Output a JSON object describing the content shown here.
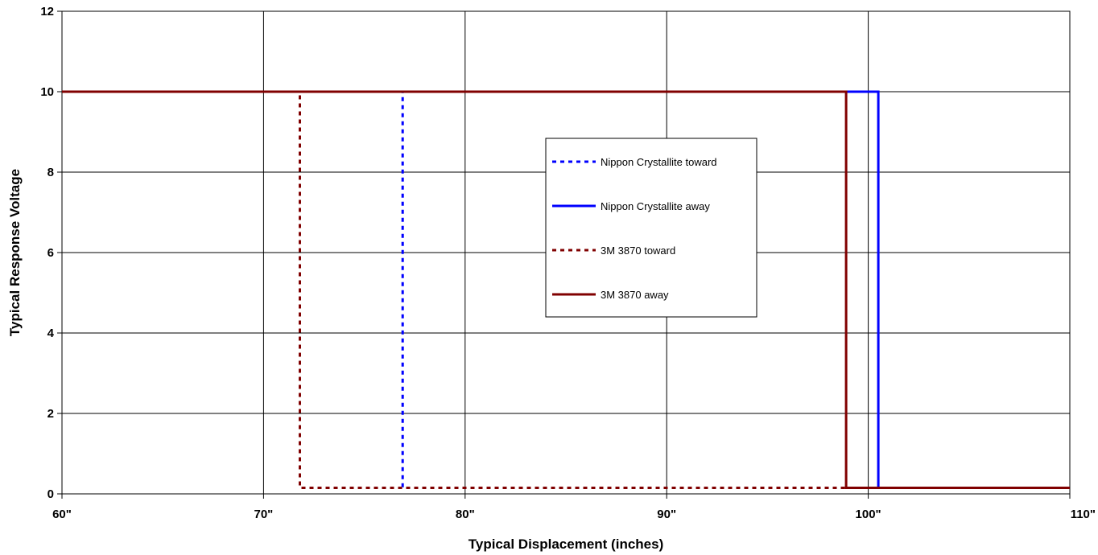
{
  "chart_data": {
    "type": "line",
    "title": "",
    "xlabel": "Typical Displacement (inches)",
    "ylabel": "Typical Response Voltage",
    "xlim": [
      60,
      110
    ],
    "ylim": [
      0,
      12
    ],
    "x_ticks": [
      60,
      70,
      80,
      90,
      100,
      110
    ],
    "x_tick_labels": [
      "60\"",
      "70\"",
      "80\"",
      "90\"",
      "100\"",
      "110\""
    ],
    "y_ticks": [
      0,
      2,
      4,
      6,
      8,
      10,
      12
    ],
    "y_tick_labels": [
      "0",
      "2",
      "4",
      "6",
      "8",
      "10",
      "12"
    ],
    "grid": true,
    "legend_position": "center",
    "series": [
      {
        "name": "Nippon Crystallite toward",
        "color": "#0000ff",
        "dash": "dotted",
        "points": [
          [
            60,
            10
          ],
          [
            76.9,
            10
          ],
          [
            76.9,
            0.15
          ],
          [
            110,
            0.15
          ]
        ]
      },
      {
        "name": "Nippon Crystallite away",
        "color": "#0000ff",
        "dash": "solid",
        "points": [
          [
            60,
            10
          ],
          [
            100.5,
            10
          ],
          [
            100.5,
            0.15
          ],
          [
            110,
            0.15
          ]
        ]
      },
      {
        "name": "3M 3870 toward",
        "color": "#800000",
        "dash": "dotted",
        "points": [
          [
            60,
            10
          ],
          [
            71.8,
            10
          ],
          [
            71.8,
            0.15
          ],
          [
            110,
            0.15
          ]
        ]
      },
      {
        "name": "3M 3870 away",
        "color": "#800000",
        "dash": "solid",
        "points": [
          [
            60,
            10
          ],
          [
            98.9,
            10
          ],
          [
            98.9,
            0.15
          ],
          [
            110,
            0.15
          ]
        ]
      }
    ]
  }
}
